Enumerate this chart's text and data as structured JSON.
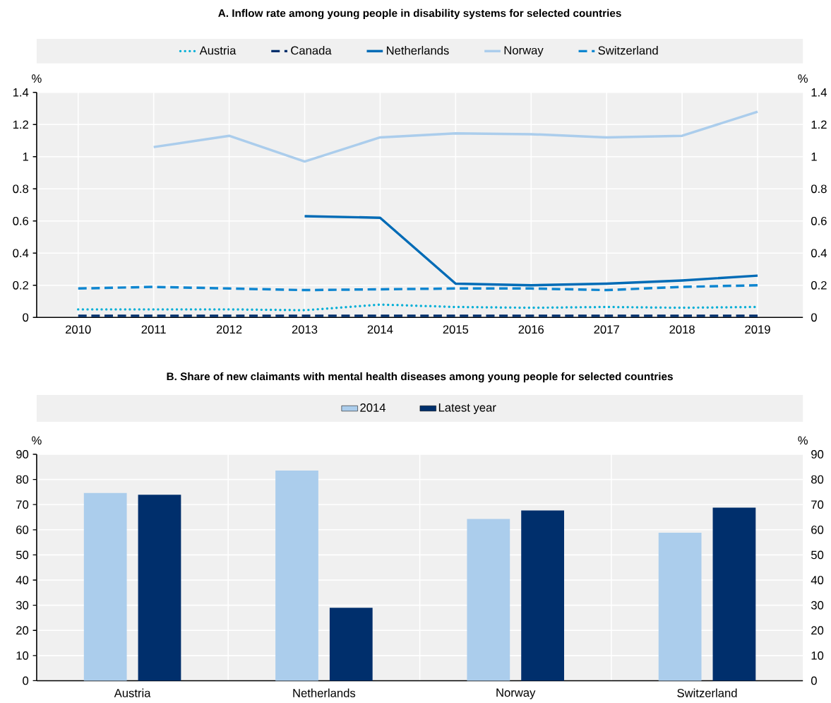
{
  "chart_data": [
    {
      "type": "line",
      "title": "A. Inflow rate among young people in disability systems for selected countries",
      "ylabel": "%",
      "y2label": "%",
      "x": [
        2010,
        2011,
        2012,
        2013,
        2014,
        2015,
        2016,
        2017,
        2018,
        2019
      ],
      "xlim": [
        2009.45,
        2019.6
      ],
      "xticks": [
        2010,
        2011,
        2012,
        2013,
        2014,
        2015,
        2016,
        2017,
        2018,
        2019
      ],
      "ylim": [
        0,
        1.4
      ],
      "yticks": [
        0,
        0.2,
        0.4,
        0.6,
        0.8,
        1,
        1.2,
        1.4
      ],
      "y2lim": [
        0,
        1.4
      ],
      "y2ticks": [
        0,
        0.2,
        0.4,
        0.6,
        0.8,
        1,
        1.2,
        1.4
      ],
      "grid": true,
      "legend": "top",
      "series": [
        {
          "name": "Austria",
          "color": "#00aed6",
          "line_style": "dotted",
          "values": [
            0.05,
            0.05,
            0.05,
            0.045,
            0.08,
            0.065,
            0.06,
            0.065,
            0.06,
            0.065
          ]
        },
        {
          "name": "Canada",
          "color": "#002f6c",
          "line_style": "dashed",
          "values": [
            0.01,
            0.01,
            0.01,
            0.01,
            0.01,
            0.01,
            0.01,
            0.01,
            0.01,
            0.01
          ]
        },
        {
          "name": "Netherlands",
          "color": "#006bb6",
          "line_style": "solid",
          "values": [
            null,
            null,
            null,
            0.63,
            0.62,
            0.21,
            0.2,
            0.21,
            0.23,
            0.26
          ]
        },
        {
          "name": "Norway",
          "color": "#abcdec",
          "line_style": "solid",
          "values": [
            null,
            1.06,
            1.13,
            0.97,
            1.12,
            1.145,
            1.14,
            1.12,
            1.13,
            1.28
          ]
        },
        {
          "name": "Switzerland",
          "color": "#0f86d0",
          "line_style": "dashed",
          "values": [
            0.18,
            0.19,
            0.18,
            0.17,
            0.175,
            0.18,
            0.18,
            0.17,
            0.19,
            0.2
          ]
        }
      ]
    },
    {
      "type": "bar",
      "title": "B. Share of new claimants with mental health diseases among young people for selected countries",
      "ylabel": "%",
      "y2label": "%",
      "categories": [
        "Austria",
        "Netherlands",
        "Norway",
        "Switzerland"
      ],
      "ylim": [
        0,
        90
      ],
      "yticks": [
        0,
        10,
        20,
        30,
        40,
        50,
        60,
        70,
        80,
        90
      ],
      "y2lim": [
        0,
        90
      ],
      "y2ticks": [
        0,
        10,
        20,
        30,
        40,
        50,
        60,
        70,
        80,
        90
      ],
      "grid": true,
      "legend": "top",
      "series": [
        {
          "name": "2014",
          "color": "#abcdec",
          "values": [
            74.6,
            83.5,
            64.3,
            58.8
          ]
        },
        {
          "name": "Latest year",
          "color": "#002f6c",
          "values": [
            73.9,
            29.0,
            67.7,
            68.8
          ]
        }
      ]
    }
  ]
}
